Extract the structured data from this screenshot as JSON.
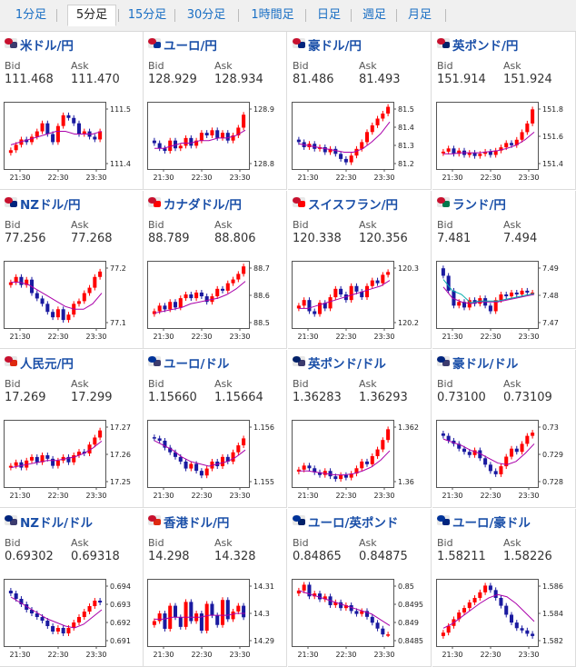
{
  "tabs": [
    {
      "label": "1分足",
      "active": false
    },
    {
      "label": "5分足",
      "active": true
    },
    {
      "label": "15分足",
      "active": false
    },
    {
      "label": "30分足",
      "active": false
    },
    {
      "label": "1時間足",
      "active": false
    },
    {
      "label": "日足",
      "active": false
    },
    {
      "label": "週足",
      "active": false
    },
    {
      "label": "月足",
      "active": false
    }
  ],
  "labels": {
    "bid": "Bid",
    "ask": "Ask"
  },
  "colors": {
    "up": "#ff0000",
    "down": "#1a1aa0",
    "ma": "#aa00aa",
    "ma2": "#00aaaa"
  },
  "pairs": [
    {
      "name": "米ドル/円",
      "flag": [
        "#c8102e",
        "#3c3b6e"
      ],
      "bid": "111.468",
      "ask": "111.470",
      "yticks": [
        "111.5",
        "111.4"
      ],
      "xticks": [
        "21:30",
        "22:30",
        "23:30"
      ],
      "ylim": [
        111.33,
        111.58
      ],
      "close": [
        111.4,
        111.42,
        111.44,
        111.43,
        111.45,
        111.47,
        111.5,
        111.46,
        111.43,
        111.49,
        111.53,
        111.52,
        111.5,
        111.46,
        111.47,
        111.45,
        111.44,
        111.47
      ],
      "ma": [
        111.42,
        111.43,
        111.44,
        111.45,
        111.46,
        111.47,
        111.47,
        111.46,
        111.46,
        111.46,
        111.47
      ]
    },
    {
      "name": "ユーロ/円",
      "flag": [
        "#c8102e",
        "#003399"
      ],
      "bid": "128.929",
      "ask": "128.934",
      "yticks": [
        "128.9",
        "128.8"
      ],
      "xticks": [
        "21:30",
        "22:30",
        "23:30"
      ],
      "ylim": [
        128.72,
        128.98
      ],
      "close": [
        128.82,
        128.8,
        128.79,
        128.83,
        128.8,
        128.81,
        128.84,
        128.81,
        128.83,
        128.86,
        128.85,
        128.87,
        128.84,
        128.86,
        128.83,
        128.85,
        128.88,
        128.93
      ],
      "ma": [
        128.8,
        128.8,
        128.81,
        128.82,
        128.82,
        128.83,
        128.83,
        128.84,
        128.84,
        128.85,
        128.87
      ]
    },
    {
      "name": "豪ドル/円",
      "flag": [
        "#c8102e",
        "#00247d"
      ],
      "bid": "81.486",
      "ask": "81.493",
      "yticks": [
        "81.5",
        "81.4",
        "81.3",
        "81.2"
      ],
      "xticks": [
        "21:30",
        "22:30",
        "23:30"
      ],
      "ylim": [
        81.12,
        81.52
      ],
      "close": [
        81.28,
        81.25,
        81.27,
        81.24,
        81.25,
        81.22,
        81.24,
        81.21,
        81.18,
        81.16,
        81.2,
        81.24,
        81.28,
        81.34,
        81.38,
        81.42,
        81.45,
        81.49
      ],
      "ma": [
        81.27,
        81.26,
        81.25,
        81.24,
        81.23,
        81.22,
        81.22,
        81.24,
        81.28,
        81.33,
        81.4
      ]
    },
    {
      "name": "英ポンド/円",
      "flag": [
        "#c8102e",
        "#012169"
      ],
      "bid": "151.914",
      "ask": "151.924",
      "yticks": [
        "151.8",
        "151.6",
        "151.4"
      ],
      "xticks": [
        "21:30",
        "22:30",
        "23:30"
      ],
      "ylim": [
        151.36,
        151.98
      ],
      "close": [
        151.52,
        151.55,
        151.5,
        151.53,
        151.49,
        151.51,
        151.48,
        151.5,
        151.52,
        151.49,
        151.53,
        151.56,
        151.6,
        151.58,
        151.63,
        151.7,
        151.78,
        151.91
      ],
      "ma": [
        151.5,
        151.5,
        151.51,
        151.51,
        151.51,
        151.52,
        151.53,
        151.55,
        151.58,
        151.63,
        151.7
      ]
    },
    {
      "name": "NZドル/円",
      "flag": [
        "#c8102e",
        "#00247d"
      ],
      "bid": "77.256",
      "ask": "77.268",
      "yticks": [
        "77.2",
        "77.1"
      ],
      "xticks": [
        "21:30",
        "22:30",
        "23:30"
      ],
      "ylim": [
        77.05,
        77.3
      ],
      "close": [
        77.22,
        77.24,
        77.21,
        77.23,
        77.18,
        77.16,
        77.14,
        77.11,
        77.09,
        77.12,
        77.08,
        77.1,
        77.14,
        77.15,
        77.18,
        77.2,
        77.24,
        77.26
      ],
      "ma": [
        77.22,
        77.22,
        77.21,
        77.19,
        77.17,
        77.15,
        77.13,
        77.12,
        77.12,
        77.14,
        77.18
      ]
    },
    {
      "name": "カナダドル/円",
      "flag": [
        "#c8102e",
        "#ff0000"
      ],
      "bid": "88.789",
      "ask": "88.806",
      "yticks": [
        "88.7",
        "88.6",
        "88.5"
      ],
      "xticks": [
        "21:30",
        "22:30",
        "23:30"
      ],
      "ylim": [
        88.46,
        88.82
      ],
      "close": [
        88.55,
        88.58,
        88.56,
        88.6,
        88.57,
        88.62,
        88.64,
        88.62,
        88.65,
        88.63,
        88.6,
        88.63,
        88.67,
        88.66,
        88.7,
        88.72,
        88.75,
        88.79
      ],
      "ma": [
        88.54,
        88.55,
        88.56,
        88.57,
        88.59,
        88.6,
        88.61,
        88.62,
        88.64,
        88.67,
        88.71
      ]
    },
    {
      "name": "スイスフラン/円",
      "flag": [
        "#c8102e",
        "#ff0000"
      ],
      "bid": "120.338",
      "ask": "120.356",
      "yticks": [
        "120.3",
        "120.2"
      ],
      "xticks": [
        "21:30",
        "22:30",
        "23:30"
      ],
      "ylim": [
        120.14,
        120.38
      ],
      "close": [
        120.22,
        120.24,
        120.2,
        120.19,
        120.23,
        120.21,
        120.25,
        120.28,
        120.26,
        120.24,
        120.29,
        120.27,
        120.25,
        120.29,
        120.31,
        120.3,
        120.33,
        120.34
      ],
      "ma": [
        120.21,
        120.21,
        120.22,
        120.23,
        120.24,
        120.25,
        120.26,
        120.27,
        120.28,
        120.29,
        120.31
      ]
    },
    {
      "name": "ランド/円",
      "flag": [
        "#c8102e",
        "#007a4d"
      ],
      "bid": "7.481",
      "ask": "7.494",
      "yticks": [
        "7.49",
        "7.48",
        "7.47"
      ],
      "xticks": [
        "21:30",
        "22:30",
        "23:30"
      ],
      "ylim": [
        7.462,
        7.498
      ],
      "close": [
        7.49,
        7.482,
        7.474,
        7.476,
        7.473,
        7.477,
        7.475,
        7.478,
        7.474,
        7.471,
        7.477,
        7.48,
        7.479,
        7.481,
        7.48,
        7.482,
        7.481,
        7.481
      ],
      "ma": [
        7.484,
        7.478,
        7.476,
        7.475,
        7.476,
        7.476,
        7.476,
        7.477,
        7.478,
        7.479,
        7.48
      ]
    },
    {
      "name": "人民元/円",
      "flag": [
        "#c8102e",
        "#de2910"
      ],
      "bid": "17.269",
      "ask": "17.299",
      "yticks": [
        "17.27",
        "17.26",
        "17.25"
      ],
      "xticks": [
        "21:30",
        "22:30",
        "23:30"
      ],
      "ylim": [
        17.238,
        17.276
      ],
      "close": [
        17.25,
        17.252,
        17.249,
        17.253,
        17.255,
        17.252,
        17.256,
        17.254,
        17.25,
        17.253,
        17.255,
        17.252,
        17.256,
        17.258,
        17.257,
        17.262,
        17.266,
        17.27
      ],
      "ma": [
        17.249,
        17.25,
        17.251,
        17.252,
        17.253,
        17.253,
        17.254,
        17.255,
        17.257,
        17.26,
        17.264
      ]
    },
    {
      "name": "ユーロ/ドル",
      "flag": [
        "#003399",
        "#3c3b6e"
      ],
      "bid": "1.15660",
      "ask": "1.15664",
      "yticks": [
        "1.156",
        "1.155"
      ],
      "xticks": [
        "21:30",
        "22:30",
        "23:30"
      ],
      "ylim": [
        1.1545,
        1.1574
      ],
      "close": [
        1.1566,
        1.1565,
        1.1562,
        1.156,
        1.1558,
        1.1556,
        1.1553,
        1.1555,
        1.1552,
        1.155,
        1.1553,
        1.1556,
        1.1554,
        1.1558,
        1.1556,
        1.156,
        1.1563,
        1.1566
      ],
      "ma": [
        1.1565,
        1.1563,
        1.1561,
        1.1558,
        1.1556,
        1.1555,
        1.1554,
        1.1555,
        1.1556,
        1.1558,
        1.1561
      ]
    },
    {
      "name": "英ポンド/ドル",
      "flag": [
        "#012169",
        "#3c3b6e"
      ],
      "bid": "1.36283",
      "ask": "1.36293",
      "yticks": [
        "1.362",
        "1.36"
      ],
      "xticks": [
        "21:30",
        "22:30",
        "23:30"
      ],
      "ylim": [
        1.3585,
        1.3635
      ],
      "close": [
        1.3598,
        1.3601,
        1.3599,
        1.3596,
        1.3594,
        1.3597,
        1.3593,
        1.3591,
        1.3594,
        1.3592,
        1.3595,
        1.3599,
        1.3604,
        1.3602,
        1.3608,
        1.3613,
        1.362,
        1.3628
      ],
      "ma": [
        1.3597,
        1.3597,
        1.3596,
        1.3595,
        1.3594,
        1.3594,
        1.3595,
        1.3597,
        1.36,
        1.3605,
        1.3612
      ]
    },
    {
      "name": "豪ドル/ドル",
      "flag": [
        "#00247d",
        "#3c3b6e"
      ],
      "bid": "0.73100",
      "ask": "0.73109",
      "yticks": [
        "0.73",
        "0.729",
        "0.728"
      ],
      "xticks": [
        "21:30",
        "22:30",
        "23:30"
      ],
      "ylim": [
        0.7276,
        0.7318
      ],
      "close": [
        0.7308,
        0.7305,
        0.7303,
        0.73,
        0.7298,
        0.7296,
        0.7299,
        0.7294,
        0.729,
        0.7286,
        0.7284,
        0.7289,
        0.7295,
        0.73,
        0.7298,
        0.7303,
        0.7308,
        0.731
      ],
      "ma": [
        0.7306,
        0.7304,
        0.7302,
        0.7299,
        0.7297,
        0.7294,
        0.7291,
        0.729,
        0.7292,
        0.7297,
        0.7303
      ]
    },
    {
      "name": "NZドル/ドル",
      "flag": [
        "#00247d",
        "#3c3b6e"
      ],
      "bid": "0.69302",
      "ask": "0.69318",
      "yticks": [
        "0.694",
        "0.693",
        "0.692",
        "0.691"
      ],
      "xticks": [
        "21:30",
        "22:30",
        "23:30"
      ],
      "ylim": [
        0.6906,
        0.6943
      ],
      "close": [
        0.6935,
        0.6932,
        0.6929,
        0.6926,
        0.6924,
        0.6922,
        0.692,
        0.6917,
        0.6914,
        0.6916,
        0.6913,
        0.6916,
        0.6919,
        0.6922,
        0.6925,
        0.6928,
        0.6931,
        0.693
      ],
      "ma": [
        0.6933,
        0.693,
        0.6927,
        0.6924,
        0.6921,
        0.6919,
        0.6917,
        0.6916,
        0.6918,
        0.6922,
        0.6926
      ]
    },
    {
      "name": "香港ドル/円",
      "flag": [
        "#c8102e",
        "#de2910"
      ],
      "bid": "14.298",
      "ask": "14.328",
      "yticks": [
        "14.31",
        "14.3",
        "14.29"
      ],
      "xticks": [
        "21:30",
        "22:30",
        "23:30"
      ],
      "ylim": [
        14.283,
        14.318
      ],
      "close": [
        14.296,
        14.3,
        14.292,
        14.304,
        14.298,
        14.293,
        14.306,
        14.296,
        14.3,
        14.291,
        14.305,
        14.299,
        14.294,
        14.307,
        14.297,
        14.301,
        14.304,
        14.298
      ],
      "ma": [
        14.297,
        14.297,
        14.298,
        14.298,
        14.298,
        14.298,
        14.299,
        14.299,
        14.299,
        14.3,
        14.3
      ]
    },
    {
      "name": "ユーロ/英ポンド",
      "flag": [
        "#003399",
        "#012169"
      ],
      "bid": "0.84865",
      "ask": "0.84875",
      "yticks": [
        "0.85",
        "0.8495",
        "0.849",
        "0.8485"
      ],
      "xticks": [
        "21:30",
        "22:30",
        "23:30"
      ],
      "ylim": [
        0.8483,
        0.8506
      ],
      "close": [
        0.8502,
        0.8504,
        0.85,
        0.8501,
        0.8499,
        0.85,
        0.8497,
        0.8498,
        0.8496,
        0.8497,
        0.8495,
        0.8494,
        0.8495,
        0.8493,
        0.8491,
        0.8489,
        0.8487,
        0.8487
      ],
      "ma": [
        0.8502,
        0.8501,
        0.85,
        0.8499,
        0.8498,
        0.8497,
        0.8496,
        0.8495,
        0.8494,
        0.8492,
        0.849
      ]
    },
    {
      "name": "ユーロ/豪ドル",
      "flag": [
        "#003399",
        "#00247d"
      ],
      "bid": "1.58211",
      "ask": "1.58226",
      "yticks": [
        "1.586",
        "1.584",
        "1.582"
      ],
      "xticks": [
        "21:30",
        "22:30",
        "23:30"
      ],
      "ylim": [
        1.5812,
        1.5872
      ],
      "close": [
        1.5824,
        1.583,
        1.5836,
        1.5842,
        1.5846,
        1.5851,
        1.5855,
        1.586,
        1.5866,
        1.5862,
        1.5855,
        1.5848,
        1.584,
        1.5833,
        1.5828,
        1.5826,
        1.5823,
        1.5821
      ],
      "ma": [
        1.5828,
        1.5832,
        1.5838,
        1.5844,
        1.585,
        1.5855,
        1.5858,
        1.5856,
        1.585,
        1.5842,
        1.5834
      ]
    }
  ]
}
